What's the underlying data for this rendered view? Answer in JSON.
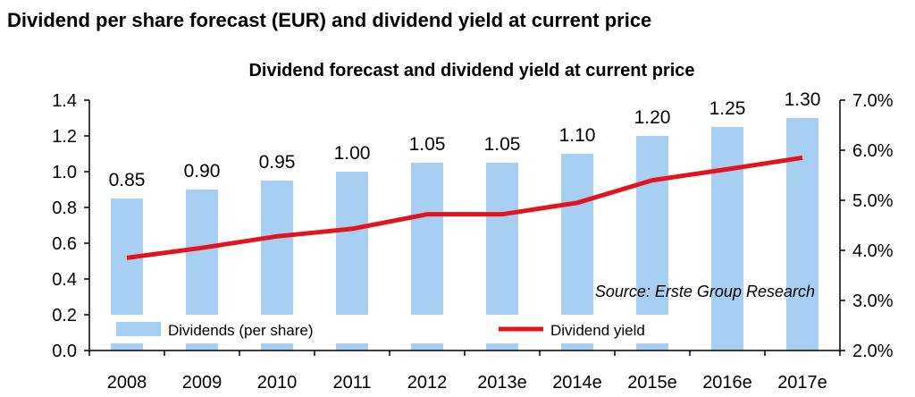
{
  "page_title": "Dividend per share forecast (EUR) and dividend yield at current price",
  "source_note": "Source: Erste Group Research",
  "colors": {
    "bar": "#a6cff2",
    "line": "#e4141e",
    "axis": "#000000"
  },
  "chart_data": {
    "type": "bar",
    "title": "Dividend forecast and dividend yield at current price",
    "categories": [
      "2008",
      "2009",
      "2010",
      "2011",
      "2012",
      "2013e",
      "2014e",
      "2015e",
      "2016e",
      "2017e"
    ],
    "series": [
      {
        "name": "Dividends (per share)",
        "type": "bar",
        "axis": "left",
        "values": [
          0.85,
          0.9,
          0.95,
          1.0,
          1.05,
          1.05,
          1.1,
          1.2,
          1.25,
          1.3
        ],
        "labels": [
          "0.85",
          "0.90",
          "0.95",
          "1.00",
          "1.05",
          "1.05",
          "1.10",
          "1.20",
          "1.25",
          "1.30"
        ]
      },
      {
        "name": "Dividend yield",
        "type": "line",
        "axis": "right",
        "values": [
          3.85,
          4.05,
          4.28,
          4.43,
          4.72,
          4.72,
          4.95,
          5.4,
          5.62,
          5.85
        ]
      }
    ],
    "y_left": {
      "min": 0,
      "max": 1.4,
      "step": 0.2,
      "tick_labels": [
        "0.0",
        "0.2",
        "0.4",
        "0.6",
        "0.8",
        "1.0",
        "1.2",
        "1.4"
      ]
    },
    "y_right": {
      "min": 2.0,
      "max": 7.0,
      "step": 1.0,
      "tick_labels": [
        "2.0%",
        "3.0%",
        "4.0%",
        "5.0%",
        "6.0%",
        "7.0%"
      ]
    },
    "grid": false,
    "legend_position": "bottom"
  }
}
